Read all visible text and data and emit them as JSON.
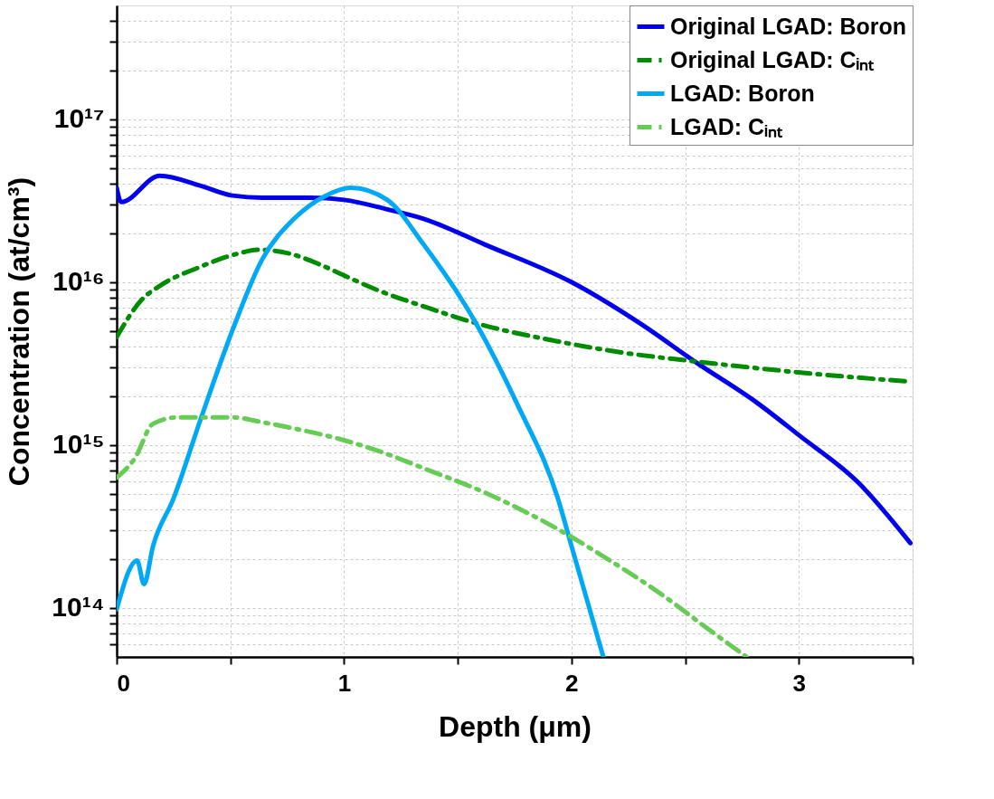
{
  "chart_data": {
    "type": "line",
    "xlabel": "Depth (μm)",
    "ylabel": "Concentration (at/cm³)",
    "log": "y",
    "grid": true,
    "legend": "top right",
    "xlim": [
      0,
      3.5
    ],
    "ylim": [
      50000000000000.0,
      5e+17
    ],
    "xticks": [
      0,
      1,
      2,
      3,
      {
        "value": 0.5,
        "label": null
      },
      {
        "value": 1.5,
        "label": null
      },
      {
        "value": 2.5,
        "label": null
      },
      {
        "value": 3.5,
        "label": null
      }
    ],
    "yticks": [
      {
        "value": 100000000000000.0,
        "label": "10¹⁴"
      },
      {
        "value": 1000000000000000.0,
        "label": "10¹⁵"
      },
      {
        "value": 1e+16,
        "label": "10¹⁶"
      },
      {
        "value": 1e+17,
        "label": "10¹⁷"
      },
      {
        "value": 60000000000000.0,
        "label": null
      },
      {
        "value": 70000000000000.0,
        "label": null
      },
      {
        "value": 80000000000000.0,
        "label": null
      },
      {
        "value": 90000000000000.0,
        "label": null
      },
      {
        "value": 200000000000000.0,
        "label": null
      },
      {
        "value": 300000000000000.0,
        "label": null
      },
      {
        "value": 400000000000000.0,
        "label": null
      },
      {
        "value": 500000000000000.0,
        "label": null
      },
      {
        "value": 600000000000000.0,
        "label": null
      },
      {
        "value": 700000000000000.0,
        "label": null
      },
      {
        "value": 800000000000000.0,
        "label": null
      },
      {
        "value": 900000000000000.0,
        "label": null
      },
      {
        "value": 2000000000000000.0,
        "label": null
      },
      {
        "value": 3000000000000000.0,
        "label": null
      },
      {
        "value": 4000000000000000.0,
        "label": null
      },
      {
        "value": 5000000000000000.0,
        "label": null
      },
      {
        "value": 6000000000000000.0,
        "label": null
      },
      {
        "value": 7000000000000000.0,
        "label": null
      },
      {
        "value": 8000000000000000.0,
        "label": null
      },
      {
        "value": 9000000000000000.0,
        "label": null
      },
      {
        "value": 2e+16,
        "label": null
      },
      {
        "value": 3e+16,
        "label": null
      },
      {
        "value": 4e+16,
        "label": null
      },
      {
        "value": 5e+16,
        "label": null
      },
      {
        "value": 6e+16,
        "label": null
      },
      {
        "value": 7e+16,
        "label": null
      },
      {
        "value": 8e+16,
        "label": null
      },
      {
        "value": 9e+16,
        "label": null
      },
      {
        "value": 2e+17,
        "label": null
      },
      {
        "value": 3e+17,
        "label": null
      },
      {
        "value": 4e+17,
        "label": null
      }
    ],
    "series": [
      {
        "name": "Original LGAD: Boron",
        "color": "#0000ee",
        "line_style": "solid",
        "x": [
          0,
          0.02,
          0.19,
          0.37,
          0.51,
          0.64,
          0.85,
          1.0,
          1.19,
          1.35,
          1.62,
          2.0,
          2.3,
          2.55,
          2.82,
          3.0,
          3.26,
          3.49
        ],
        "values": [
          3.8e+16,
          3.1e+16,
          4.5e+16,
          3.9e+16,
          3.4e+16,
          3.3e+16,
          3.3e+16,
          3.2e+16,
          2.8e+16,
          2.45e+16,
          1.7e+16,
          1e+16,
          5600000000000000.0,
          3200000000000000.0,
          1800000000000000.0,
          1150000000000000.0,
          590000000000000.0,
          250000000000000.0
        ]
      },
      {
        "name": "Original LGAD: Cᵢₙₜ",
        "color": "#008c00",
        "line_style": "dashdot",
        "x": [
          0,
          0.11,
          0.19,
          0.36,
          0.52,
          0.63,
          0.75,
          0.89,
          1.0,
          1.15,
          1.35,
          1.58,
          1.95,
          2.22,
          2.51,
          2.78,
          3.05,
          3.49
        ],
        "values": [
          4600000000000000.0,
          7800000000000000.0,
          9500000000000000.0,
          1.23e+16,
          1.48e+16,
          1.58e+16,
          1.51e+16,
          1.29e+16,
          1.1e+16,
          8900000000000000.0,
          7100000000000000.0,
          5600000000000000.0,
          4300000000000000.0,
          3700000000000000.0,
          3300000000000000.0,
          3000000000000000.0,
          2750000000000000.0,
          2450000000000000.0
        ]
      },
      {
        "name": "LGAD: Boron",
        "color": "#00a8f5",
        "line_style": "solid",
        "x": [
          0,
          0.09,
          0.12,
          0.16,
          0.25,
          0.37,
          0.51,
          0.64,
          0.78,
          0.92,
          1.03,
          1.19,
          1.35,
          1.58,
          1.76,
          1.94,
          2.0,
          2.08,
          2.14
        ],
        "values": [
          98000000000000.0,
          195000000000000.0,
          140000000000000.0,
          240000000000000.0,
          470000000000000.0,
          1450000000000000.0,
          5100000000000000.0,
          1.38e+16,
          2.45e+16,
          3.4e+16,
          3.8e+16,
          3.2e+16,
          1.7e+16,
          5600000000000000.0,
          1800000000000000.0,
          470000000000000.0,
          240000000000000.0,
          98000000000000.0,
          50000000000000.0
        ]
      },
      {
        "name": "LGAD: Cᵢₙₜ",
        "color": "#66cc55",
        "line_style": "dashdot",
        "x": [
          0,
          0.08,
          0.16,
          0.27,
          0.37,
          0.51,
          0.64,
          0.82,
          1.0,
          1.18,
          1.35,
          1.62,
          1.93,
          2.17,
          2.4,
          2.58,
          2.77
        ],
        "values": [
          630000000000000.0,
          830000000000000.0,
          1350000000000000.0,
          1480000000000000.0,
          1480000000000000.0,
          1480000000000000.0,
          1380000000000000.0,
          1230000000000000.0,
          1070000000000000.0,
          890000000000000.0,
          720000000000000.0,
          510000000000000.0,
          310000000000000.0,
          195000000000000.0,
          120000000000000.0,
          78000000000000.0,
          50000000000000.0
        ]
      }
    ]
  }
}
